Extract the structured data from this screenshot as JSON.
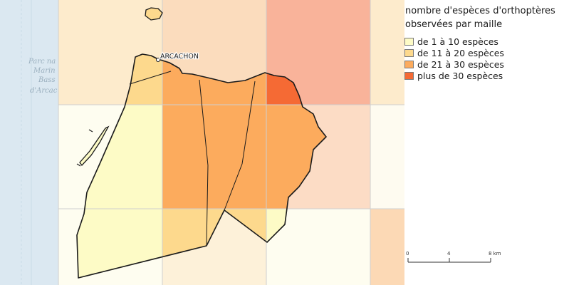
{
  "legend": {
    "title_line1": "nombre d'espèces d'orthoptères",
    "title_line2": "observées par maille",
    "items": [
      {
        "label": "de 1 à 10 espèces",
        "color": "#fdfbc6"
      },
      {
        "label": "de 11 à 20 espèces",
        "color": "#fdd98d"
      },
      {
        "label": "de 21 à 30 espèces",
        "color": "#fcab5d"
      },
      {
        "label": "plus de 30 espèces",
        "color": "#f56a34"
      }
    ]
  },
  "map": {
    "place_label": "ARCACHON",
    "background_label_lines": [
      "Parc na",
      "Marin",
      "Bass",
      "d'Arcac"
    ],
    "ocean_color": "#dbe8f1",
    "grid_line_color": "#cfcfcf",
    "outline_color": "#1b1b1b"
  },
  "scale_bar": {
    "ticks": [
      "0",
      "4",
      "8 km"
    ]
  }
}
